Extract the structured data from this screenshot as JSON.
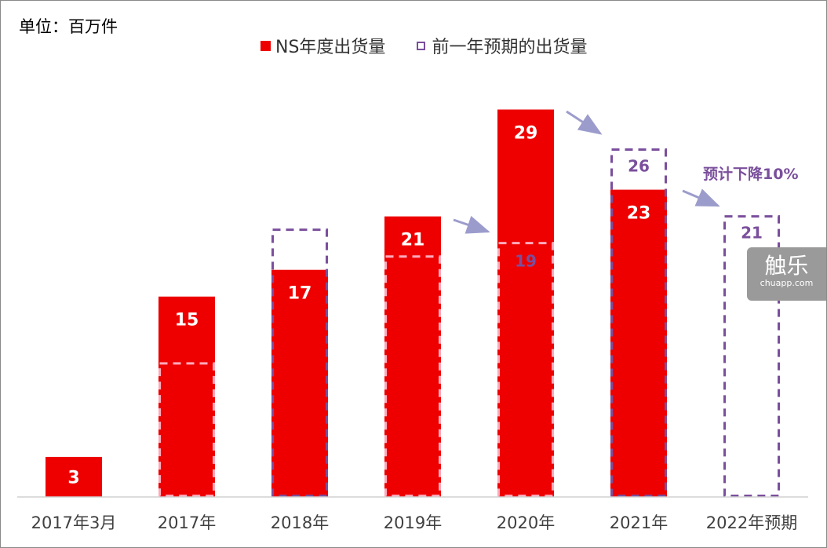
{
  "unit_label": "单位：百万件",
  "legend": {
    "actual": "NS年度出货量",
    "forecast": "前一年预期的出货量"
  },
  "annotation": "预计下降10%",
  "watermark": {
    "main": "触乐",
    "sub": "chuapp.com"
  },
  "colors": {
    "actual": "#ee0000",
    "forecast": "#7a4f9c",
    "arrow": "#9c9ccc"
  },
  "chart_data": {
    "type": "bar",
    "categories": [
      "2017年3月",
      "2017年",
      "2018年",
      "2019年",
      "2020年",
      "2021年",
      "2022年预期"
    ],
    "series": [
      {
        "name": "NS年度出货量",
        "values": [
          3,
          15,
          17,
          21,
          29,
          23,
          null
        ]
      },
      {
        "name": "前一年预期的出货量",
        "values": [
          null,
          10,
          20,
          18,
          19,
          26,
          21
        ]
      }
    ],
    "data_labels": {
      "actual": [
        "3",
        "15",
        "17",
        "21",
        "29",
        "23",
        ""
      ],
      "forecast": [
        "",
        "",
        "",
        "",
        "19",
        "26",
        "21"
      ]
    },
    "ylim": [
      0,
      29.5
    ],
    "grid": false,
    "legend_position": "top"
  }
}
